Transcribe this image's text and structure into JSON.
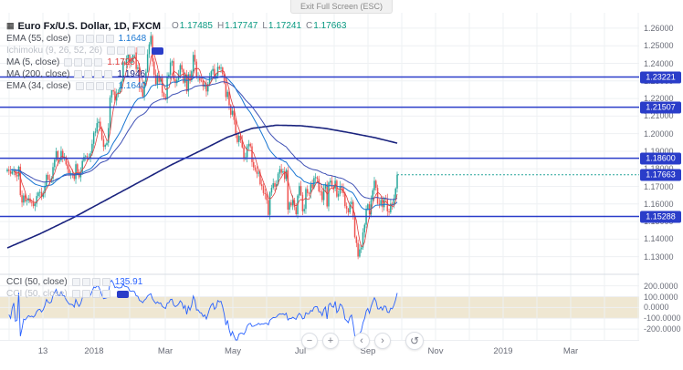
{
  "window": {
    "tooltip": "Exit Full Screen (ESC)"
  },
  "header": {
    "symbol_icon": "▦",
    "title": "Euro Fx/U.S. Dollar, 1D, FXCM",
    "ohlc": [
      [
        "O",
        "1.17485"
      ],
      [
        "H",
        "1.17747"
      ],
      [
        "L",
        "1.17241"
      ],
      [
        "C",
        "1.17663"
      ]
    ],
    "ohlc_color": "#089981"
  },
  "indicators": [
    {
      "label": "EMA (55, close)",
      "value": "1.1648",
      "value_color": "#1976d2",
      "muted": false,
      "badge": false
    },
    {
      "label": "Ichimoku (9, 26, 52, 26)",
      "value": "",
      "value_color": "",
      "muted": true,
      "badge": true
    },
    {
      "label": "MA (5, close)",
      "value": "1.1725",
      "value_color": "#e03e3e",
      "muted": false,
      "badge": false
    },
    {
      "label": "MA (200, close)",
      "value": "1.1946",
      "value_color": "#1a237e",
      "muted": false,
      "badge": false
    },
    {
      "label": "EMA (34, close)",
      "value": "1.1640",
      "value_color": "#1976d2",
      "muted": false,
      "badge": false
    }
  ],
  "lower_indicators": [
    {
      "label": "CCI (50, close)",
      "value": "135.91",
      "value_color": "#2962ff",
      "muted": false,
      "badge": false
    },
    {
      "label": "CCI (50, close)",
      "value": "",
      "value_color": "",
      "muted": true,
      "badge": true
    }
  ],
  "nav": {
    "zoom_out": "−",
    "zoom_in": "+",
    "scroll_left": "‹",
    "scroll_right": "›",
    "reset": "↺"
  },
  "colors": {
    "level_blue": "#2a3dc9",
    "grid": "#eef0f3",
    "separator": "#d8dce3",
    "up": "#26a69a",
    "down": "#ef5350",
    "axis_text": "#6a6d78"
  },
  "chart_data": [
    {
      "type": "candlestick",
      "title": "Euro Fx/U.S. Dollar, 1D, FXCM",
      "last_ohlc": {
        "o": 1.17485,
        "h": 1.17747,
        "l": 1.17241,
        "c": 1.17663
      },
      "last_price": 1.17663,
      "ylim": [
        1.1205,
        1.2667
      ],
      "y_ticks": [
        1.26,
        1.25,
        1.24,
        1.23,
        1.22,
        1.21,
        1.2,
        1.19,
        1.18,
        1.17,
        1.16,
        1.15,
        1.14,
        1.13
      ],
      "levels": [
        1.23221,
        1.21507,
        1.186,
        1.15288
      ],
      "x_axis_labels": [
        {
          "text": "13",
          "x": 47
        },
        {
          "text": "2018",
          "x": 103
        },
        {
          "text": "Mar",
          "x": 181
        },
        {
          "text": "May",
          "x": 255
        },
        {
          "text": "Jul",
          "x": 329
        },
        {
          "text": "Sep",
          "x": 403
        },
        {
          "text": "Nov",
          "x": 477
        },
        {
          "text": "2019",
          "x": 551
        },
        {
          "text": "Mar",
          "x": 625
        }
      ],
      "closes": [
        1.1796,
        1.1788,
        1.1772,
        1.1785,
        1.179,
        1.1764,
        1.1757,
        1.1812,
        1.165,
        1.1608,
        1.1648,
        1.1615,
        1.162,
        1.1632,
        1.161,
        1.1608,
        1.1588,
        1.1602,
        1.1645,
        1.1665,
        1.1668,
        1.164,
        1.1662,
        1.1702,
        1.1765,
        1.174,
        1.1732,
        1.1745,
        1.181,
        1.1852,
        1.19,
        1.1845,
        1.1848,
        1.1902,
        1.1862,
        1.1868,
        1.1825,
        1.1798,
        1.1772,
        1.1774,
        1.1768,
        1.1742,
        1.1826,
        1.1782,
        1.1752,
        1.1783,
        1.1845,
        1.1868,
        1.1872,
        1.1856,
        1.1859,
        1.1888,
        1.1942,
        1.2005,
        1.2012,
        1.206,
        1.2068,
        1.203,
        1.1968,
        1.1925,
        1.1936,
        1.1948,
        1.2032,
        1.2205,
        1.2262,
        1.224,
        1.2188,
        1.2225,
        1.2236,
        1.2262,
        1.2298,
        1.2406,
        1.2395,
        1.2428,
        1.2455,
        1.2401,
        1.2415,
        1.2455,
        1.2462,
        1.2368,
        1.2378,
        1.2262,
        1.2252,
        1.2211,
        1.2295,
        1.2352,
        1.2452,
        1.2508,
        1.2556,
        1.241,
        1.2336,
        1.2282,
        1.2332,
        1.2295,
        1.2318,
        1.2232,
        1.221,
        1.2195,
        1.2322,
        1.2336,
        1.2405,
        1.2412,
        1.2308,
        1.2288,
        1.2306,
        1.2338,
        1.239,
        1.2365,
        1.229,
        1.2335,
        1.224,
        1.2338,
        1.2305,
        1.2355,
        1.2448,
        1.241,
        1.232,
        1.2325,
        1.2302,
        1.23,
        1.2268,
        1.228,
        1.224,
        1.2282,
        1.2325,
        1.2355,
        1.2368,
        1.2318,
        1.233,
        1.238,
        1.237,
        1.2376,
        1.2338,
        1.2288,
        1.2208,
        1.2238,
        1.2162,
        1.2108,
        1.213,
        1.2078,
        1.1992,
        1.1952,
        1.1988,
        1.1962,
        1.1922,
        1.1862,
        1.1866,
        1.1928,
        1.1942,
        1.1928,
        1.1838,
        1.1808,
        1.1792,
        1.1772,
        1.1778,
        1.1712,
        1.1702,
        1.1662,
        1.1656,
        1.1622,
        1.1538,
        1.1665,
        1.1692,
        1.1718,
        1.1698,
        1.1712,
        1.1772,
        1.1798,
        1.1778,
        1.1786,
        1.1742,
        1.1792,
        1.1568,
        1.1608,
        1.1592,
        1.1622,
        1.1582,
        1.1542,
        1.1648,
        1.1702,
        1.1652,
        1.1558,
        1.1572,
        1.1685,
        1.1662,
        1.1658,
        1.1712,
        1.1692,
        1.1748,
        1.1752,
        1.1742,
        1.1672,
        1.167,
        1.1622,
        1.1688,
        1.1712,
        1.1586,
        1.1722,
        1.1732,
        1.1696,
        1.1688,
        1.1732,
        1.1642,
        1.1658,
        1.1702,
        1.1692,
        1.1662,
        1.1588,
        1.1572,
        1.1552,
        1.1598,
        1.1612,
        1.1528,
        1.1412,
        1.1378,
        1.1301,
        1.1342,
        1.1352,
        1.1438,
        1.1482,
        1.1572,
        1.1598,
        1.1542,
        1.1622,
        1.1678,
        1.1732,
        1.1692,
        1.1602,
        1.1598,
        1.1622,
        1.1582,
        1.1632,
        1.1628,
        1.1558,
        1.1552,
        1.1602,
        1.1592,
        1.1632,
        1.1688,
        1.1766
      ],
      "overlays": {
        "ma5": {
          "period": 5,
          "color": "#e03e3e"
        },
        "ema34": {
          "period": 34,
          "color": "#1976d2"
        },
        "ema55": {
          "period": 55,
          "color": "#3f51b5"
        },
        "ma200": {
          "color": "#1a237e",
          "anchors": [
            [
              0,
              1.135
            ],
            [
              20,
              1.143
            ],
            [
              40,
              1.152
            ],
            [
              60,
              1.162
            ],
            [
              80,
              1.172
            ],
            [
              100,
              1.182
            ],
            [
              120,
              1.191
            ],
            [
              135,
              1.198
            ],
            [
              150,
              1.203
            ],
            [
              165,
              1.2048
            ],
            [
              180,
              1.2045
            ],
            [
              195,
              1.203
            ],
            [
              210,
              1.2005
            ],
            [
              225,
              1.1978
            ],
            [
              239,
              1.1946
            ]
          ]
        }
      }
    },
    {
      "type": "line",
      "title": "CCI (50, close)",
      "period": 50,
      "color": "#2962ff",
      "ylim": [
        -300,
        290
      ],
      "y_ticks": [
        200,
        100,
        0,
        -100,
        -200
      ],
      "band": [
        -100,
        100
      ],
      "band_color": "#efe7d2",
      "last_value": 135.91
    }
  ]
}
